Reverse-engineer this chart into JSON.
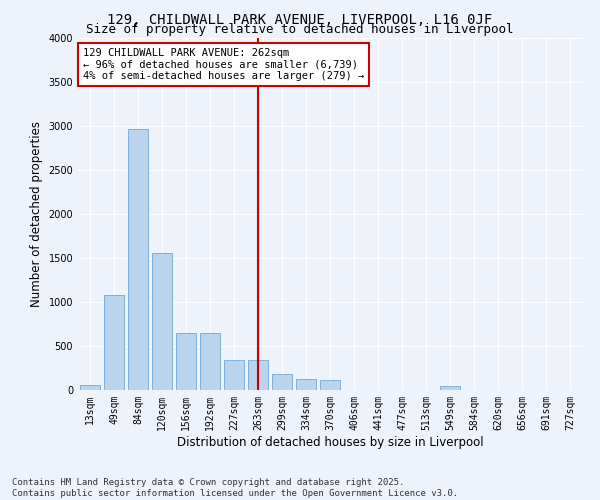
{
  "title1": "129, CHILDWALL PARK AVENUE, LIVERPOOL, L16 0JF",
  "title2": "Size of property relative to detached houses in Liverpool",
  "xlabel": "Distribution of detached houses by size in Liverpool",
  "ylabel": "Number of detached properties",
  "categories": [
    "13sqm",
    "49sqm",
    "84sqm",
    "120sqm",
    "156sqm",
    "192sqm",
    "227sqm",
    "263sqm",
    "299sqm",
    "334sqm",
    "370sqm",
    "406sqm",
    "441sqm",
    "477sqm",
    "513sqm",
    "549sqm",
    "584sqm",
    "620sqm",
    "656sqm",
    "691sqm",
    "727sqm"
  ],
  "values": [
    60,
    1080,
    2960,
    1550,
    650,
    650,
    340,
    340,
    185,
    130,
    110,
    0,
    0,
    0,
    0,
    45,
    0,
    0,
    0,
    0,
    0
  ],
  "bar_color": "#bad4ed",
  "bar_edge_color": "#6fa8d6",
  "vline_x": 7,
  "vline_color": "#cc0000",
  "annotation_text": "129 CHILDWALL PARK AVENUE: 262sqm\n← 96% of detached houses are smaller (6,739)\n4% of semi-detached houses are larger (279) →",
  "annotation_box_color": "#ffffff",
  "annotation_box_edge": "#cc0000",
  "ylim": [
    0,
    4000
  ],
  "yticks": [
    0,
    500,
    1000,
    1500,
    2000,
    2500,
    3000,
    3500,
    4000
  ],
  "footer": "Contains HM Land Registry data © Crown copyright and database right 2025.\nContains public sector information licensed under the Open Government Licence v3.0.",
  "bg_color": "#eef2fa",
  "plot_bg_color": "#eef2fa",
  "grid_color": "#ffffff",
  "title_fontsize": 10,
  "subtitle_fontsize": 9,
  "axis_label_fontsize": 8.5,
  "tick_fontsize": 7,
  "footer_fontsize": 6.5,
  "annotation_fontsize": 7.5
}
